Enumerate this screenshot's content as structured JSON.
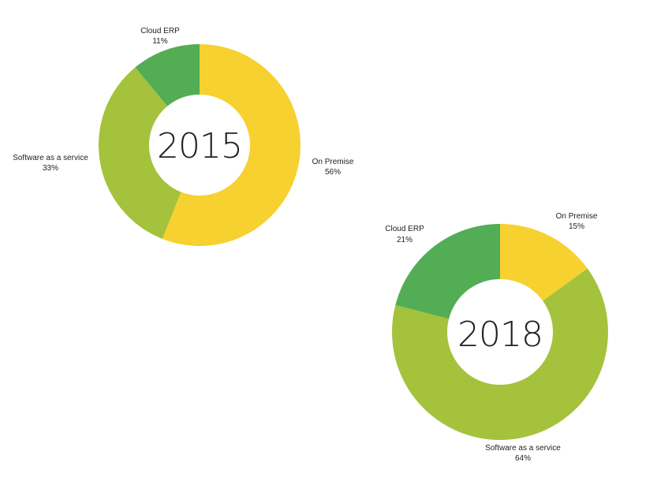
{
  "colors": {
    "on_premise": "#f6d130",
    "software_as_a_service": "#a4c23b",
    "cloud_erp": "#53ad55",
    "background": "#ffffff"
  },
  "chart_data": [
    {
      "type": "pie",
      "donut": true,
      "center_label": "2015",
      "slices": [
        {
          "label": "On Premise",
          "value": 56,
          "value_text": "56%",
          "color": "#f6d130"
        },
        {
          "label": "Software as a service",
          "value": 33,
          "value_text": "33%",
          "color": "#a4c23b"
        },
        {
          "label": "Cloud ERP",
          "value": 11,
          "value_text": "11%",
          "color": "#53ad55"
        }
      ]
    },
    {
      "type": "pie",
      "donut": true,
      "center_label": "2018",
      "slices": [
        {
          "label": "On Premise",
          "value": 15,
          "value_text": "15%",
          "color": "#f6d130"
        },
        {
          "label": "Software as a service",
          "value": 64,
          "value_text": "64%",
          "color": "#a4c23b"
        },
        {
          "label": "Cloud ERP",
          "value": 21,
          "value_text": "21%",
          "color": "#53ad55"
        }
      ]
    }
  ]
}
